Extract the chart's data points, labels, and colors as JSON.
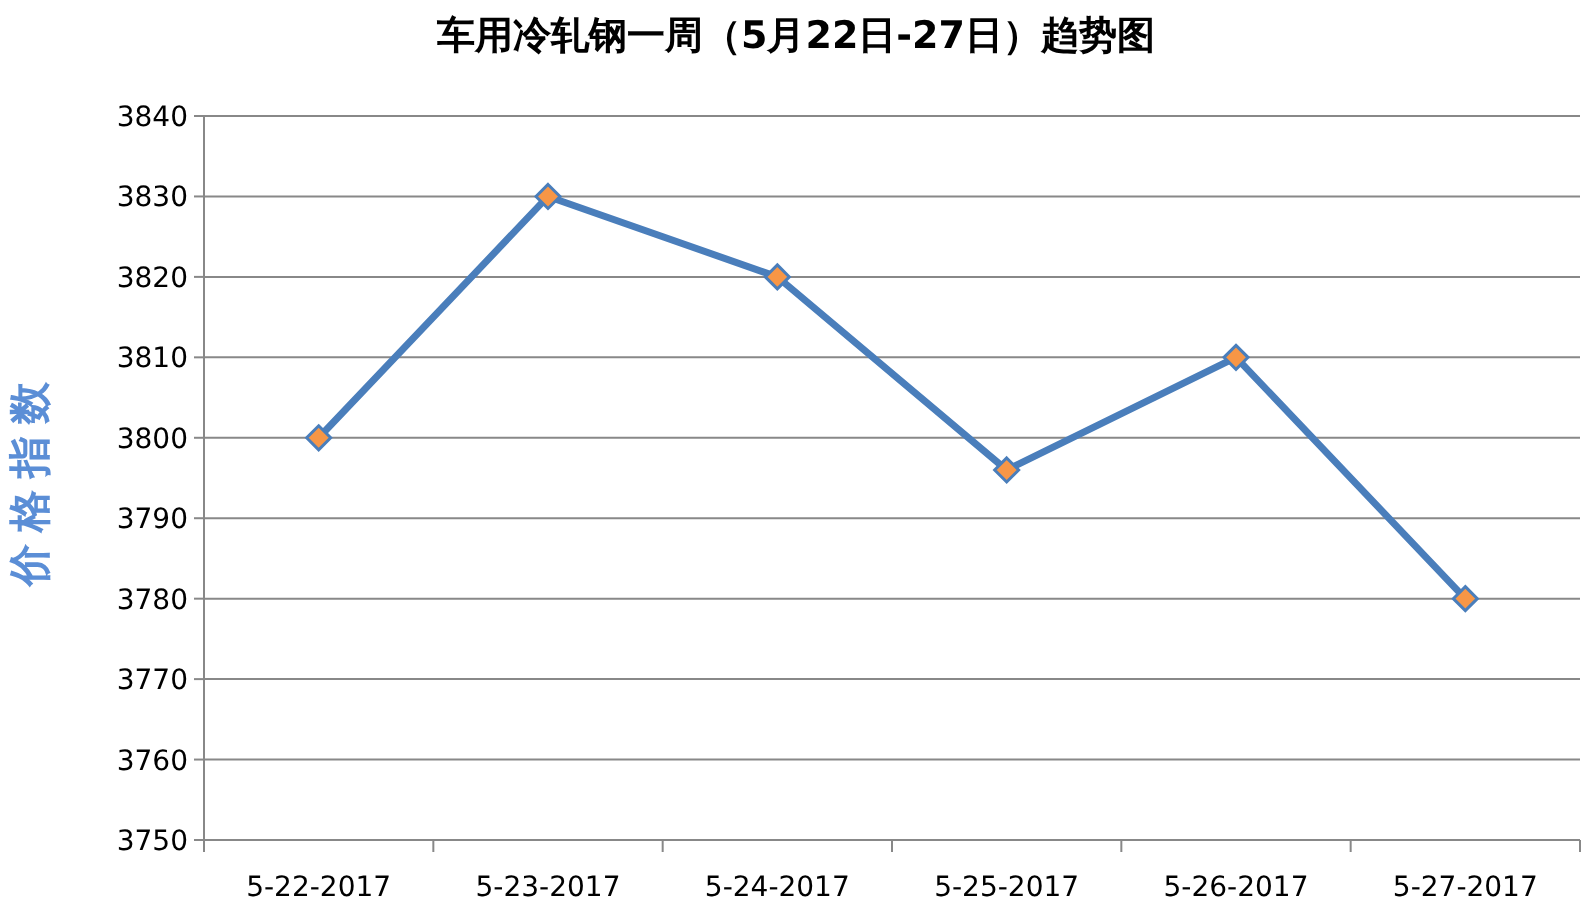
{
  "chart_data": {
    "type": "line",
    "title": "车用冷轧钢一周（5月22日-27日）趋势图",
    "ylabel": "价格指数",
    "categories": [
      "5-22-2017",
      "5-23-2017",
      "5-24-2017",
      "5-25-2017",
      "5-26-2017",
      "5-27-2017"
    ],
    "series": [
      {
        "color": "#4a7ebb",
        "colors": [
          "#f79646",
          "#f79646",
          "#f79646",
          "#f79646",
          "#f79646",
          "#f79646"
        ],
        "values": [
          3800,
          3830,
          3820,
          3796,
          3810,
          3780
        ]
      }
    ],
    "ylim": [
      3750,
      3840
    ],
    "yticks": [
      3750,
      3760,
      3770,
      3780,
      3790,
      3800,
      3810,
      3820,
      3830,
      3840
    ],
    "grid": "y",
    "marker": "diamond",
    "line_style": "solid"
  }
}
